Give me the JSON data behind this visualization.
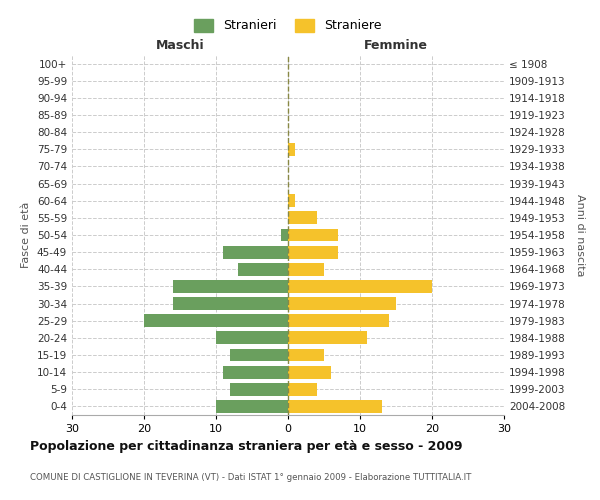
{
  "age_groups_bottom_to_top": [
    "0-4",
    "5-9",
    "10-14",
    "15-19",
    "20-24",
    "25-29",
    "30-34",
    "35-39",
    "40-44",
    "45-49",
    "50-54",
    "55-59",
    "60-64",
    "65-69",
    "70-74",
    "75-79",
    "80-84",
    "85-89",
    "90-94",
    "95-99",
    "100+"
  ],
  "birth_years_bottom_to_top": [
    "2004-2008",
    "1999-2003",
    "1994-1998",
    "1989-1993",
    "1984-1988",
    "1979-1983",
    "1974-1978",
    "1969-1973",
    "1964-1968",
    "1959-1963",
    "1954-1958",
    "1949-1953",
    "1944-1948",
    "1939-1943",
    "1934-1938",
    "1929-1933",
    "1924-1928",
    "1919-1923",
    "1914-1918",
    "1909-1913",
    "≤ 1908"
  ],
  "males_bottom_to_top": [
    10,
    8,
    9,
    8,
    10,
    20,
    16,
    16,
    7,
    9,
    1,
    0,
    0,
    0,
    0,
    0,
    0,
    0,
    0,
    0,
    0
  ],
  "females_bottom_to_top": [
    13,
    4,
    6,
    5,
    11,
    14,
    15,
    20,
    5,
    7,
    7,
    4,
    1,
    0,
    0,
    1,
    0,
    0,
    0,
    0,
    0
  ],
  "male_color": "#6a9f5e",
  "female_color": "#f5c22b",
  "background_color": "#ffffff",
  "grid_color": "#cccccc",
  "center_line_color": "#888844",
  "xlim": 30,
  "title": "Popolazione per cittadinanza straniera per età e sesso - 2009",
  "subtitle": "COMUNE DI CASTIGLIONE IN TEVERINA (VT) - Dati ISTAT 1° gennaio 2009 - Elaborazione TUTTITALIA.IT",
  "xlabel_left": "Maschi",
  "xlabel_right": "Femmine",
  "ylabel_left": "Fasce di età",
  "ylabel_right": "Anni di nascita",
  "legend_male": "Stranieri",
  "legend_female": "Straniere"
}
